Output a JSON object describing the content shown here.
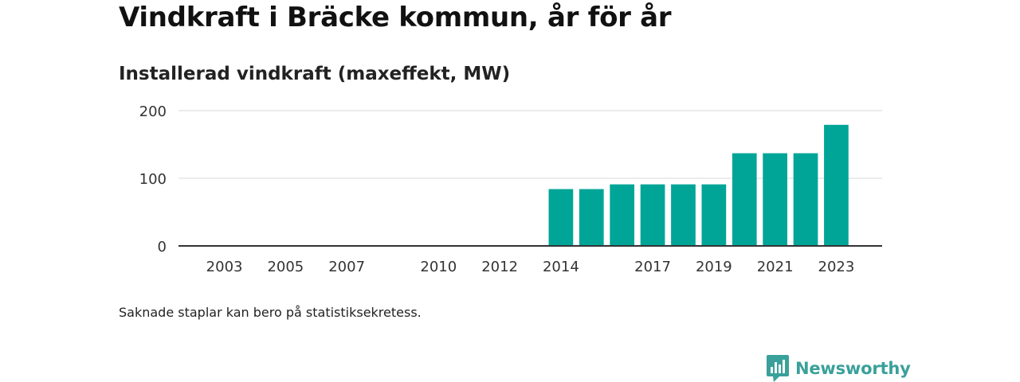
{
  "title": "Vindkraft i Bräcke kommun, år för år",
  "subtitle": "Installerad vindkraft (maxeffekt, MW)",
  "footnote": "Saknade staplar kan bero på statistiksekretess.",
  "brand": {
    "name": "Newsworthy",
    "icon": "newsworthy-logo-icon",
    "color": "#3aa09a"
  },
  "chart_data": {
    "type": "bar",
    "title": "Installerad vindkraft (maxeffekt, MW)",
    "xlabel": "",
    "ylabel": "",
    "ylim": [
      0,
      200
    ],
    "yticks": [
      "0",
      "100",
      "200"
    ],
    "grid": true,
    "xlim": [
      2001.5,
      2024.5
    ],
    "x_tick_labels": [
      "2003",
      "2005",
      "2007",
      "2010",
      "2012",
      "2014",
      "2017",
      "2019",
      "2021",
      "2023"
    ],
    "bar_color": "#00a598",
    "x": [
      2014,
      2015,
      2016,
      2017,
      2018,
      2019,
      2020,
      2021,
      2022,
      2023
    ],
    "values": [
      84,
      84,
      91,
      91,
      91,
      91,
      137,
      137,
      137,
      179
    ]
  }
}
